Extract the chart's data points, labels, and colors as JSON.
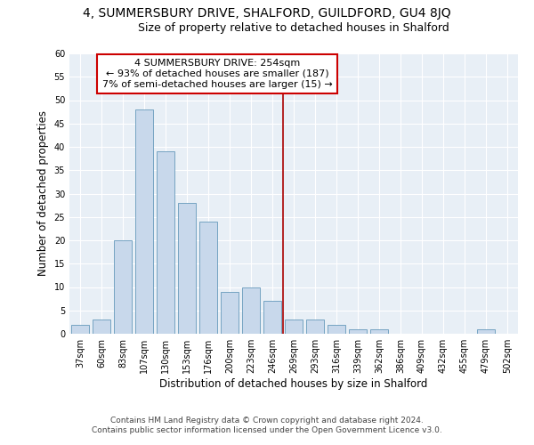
{
  "title": "4, SUMMERSBURY DRIVE, SHALFORD, GUILDFORD, GU4 8JQ",
  "subtitle": "Size of property relative to detached houses in Shalford",
  "xlabel": "Distribution of detached houses by size in Shalford",
  "ylabel": "Number of detached properties",
  "bar_color": "#c8d8eb",
  "bar_edge_color": "#6699bb",
  "categories": [
    "37sqm",
    "60sqm",
    "83sqm",
    "107sqm",
    "130sqm",
    "153sqm",
    "176sqm",
    "200sqm",
    "223sqm",
    "246sqm",
    "269sqm",
    "293sqm",
    "316sqm",
    "339sqm",
    "362sqm",
    "386sqm",
    "409sqm",
    "432sqm",
    "455sqm",
    "479sqm",
    "502sqm"
  ],
  "values": [
    2,
    3,
    20,
    48,
    39,
    28,
    24,
    9,
    10,
    7,
    3,
    3,
    2,
    1,
    1,
    0,
    0,
    0,
    0,
    1,
    0
  ],
  "vline_x_index": 9.5,
  "vline_color": "#aa0000",
  "annotation_text": "4 SUMMERSBURY DRIVE: 254sqm\n← 93% of detached houses are smaller (187)\n7% of semi-detached houses are larger (15) →",
  "ylim": [
    0,
    60
  ],
  "yticks": [
    0,
    5,
    10,
    15,
    20,
    25,
    30,
    35,
    40,
    45,
    50,
    55,
    60
  ],
  "background_color": "#e8eff6",
  "grid_color": "#ffffff",
  "footer_line1": "Contains HM Land Registry data © Crown copyright and database right 2024.",
  "footer_line2": "Contains public sector information licensed under the Open Government Licence v3.0.",
  "title_fontsize": 10,
  "subtitle_fontsize": 9,
  "axis_label_fontsize": 8.5,
  "tick_fontsize": 7,
  "annotation_fontsize": 8,
  "footer_fontsize": 6.5
}
